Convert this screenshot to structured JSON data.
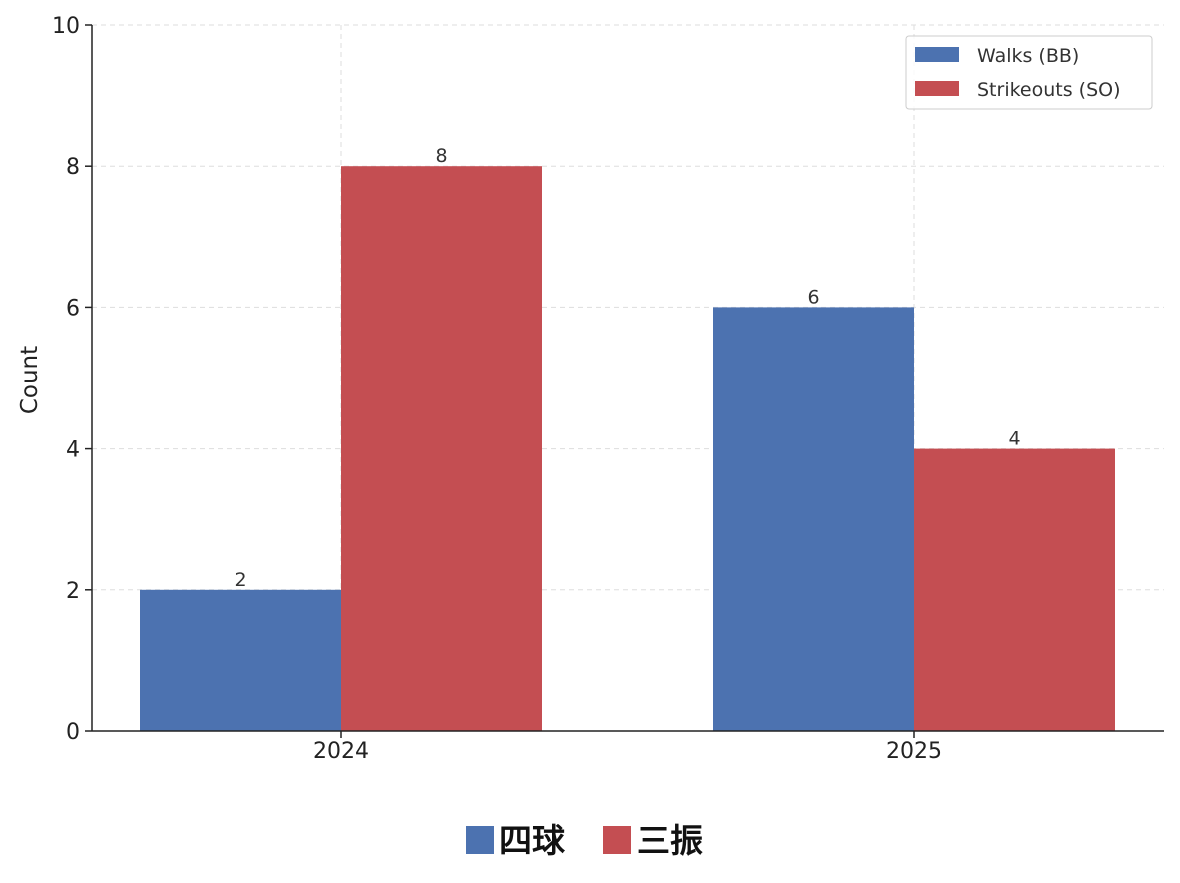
{
  "chart_data": {
    "type": "bar",
    "categories": [
      "2024",
      "2025"
    ],
    "series": [
      {
        "name": "Walks (BB)",
        "values": [
          2,
          6
        ],
        "color": "#4c72b0"
      },
      {
        "name": "Strikeouts (SO)",
        "values": [
          8,
          4
        ],
        "color": "#c44e52"
      }
    ],
    "ylabel": "Count",
    "xlabel": "",
    "ylim": [
      0,
      10
    ],
    "yticks": [
      "0",
      "2",
      "4",
      "6",
      "8",
      "10"
    ],
    "grid": true,
    "legend_position": "top-right",
    "data_labels": true
  },
  "bottom_legend": {
    "items": [
      {
        "label": "四球",
        "color": "#4c72b0"
      },
      {
        "label": "三振",
        "color": "#c44e52"
      }
    ]
  }
}
